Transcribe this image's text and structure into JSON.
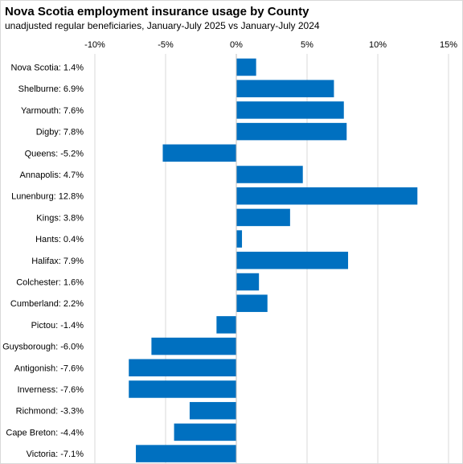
{
  "chart_data": {
    "type": "bar",
    "orientation": "horizontal",
    "title": "Nova Scotia employment insurance usage by County",
    "subtitle": "unadjusted regular beneficiaries,  January-July 2025 vs January-July 2024",
    "categories": [
      "Nova Scotia:  1.4%",
      "Shelburne:  6.9%",
      "Yarmouth:  7.6%",
      "Digby:  7.8%",
      "Queens:  -5.2%",
      "Annapolis:  4.7%",
      "Lunenburg:  12.8%",
      "Kings:  3.8%",
      "Hants:  0.4%",
      "Halifax:  7.9%",
      "Colchester:  1.6%",
      "Cumberland:  2.2%",
      "Pictou:  -1.4%",
      "Guysborough:  -6.0%",
      "Antigonish:  -7.6%",
      "Inverness:  -7.6%",
      "Richmond:  -3.3%",
      "Cape Breton:  -4.4%",
      "Victoria:  -7.1%"
    ],
    "values": [
      1.4,
      6.9,
      7.6,
      7.8,
      -5.2,
      4.7,
      12.8,
      3.8,
      0.4,
      7.9,
      1.6,
      2.2,
      -1.4,
      -6.0,
      -7.6,
      -7.6,
      -3.3,
      -4.4,
      -7.1
    ],
    "xlim": [
      -10,
      15
    ],
    "x_ticks": [
      -10,
      -5,
      0,
      5,
      10,
      15
    ],
    "x_tick_labels": [
      "-10%",
      "-5%",
      "0%",
      "5%",
      "10%",
      "15%"
    ],
    "x_axis_position": "top",
    "grid": "vertical",
    "legend": "none",
    "bar_color": "#0070c0",
    "grid_color": "#d9d9d9"
  }
}
